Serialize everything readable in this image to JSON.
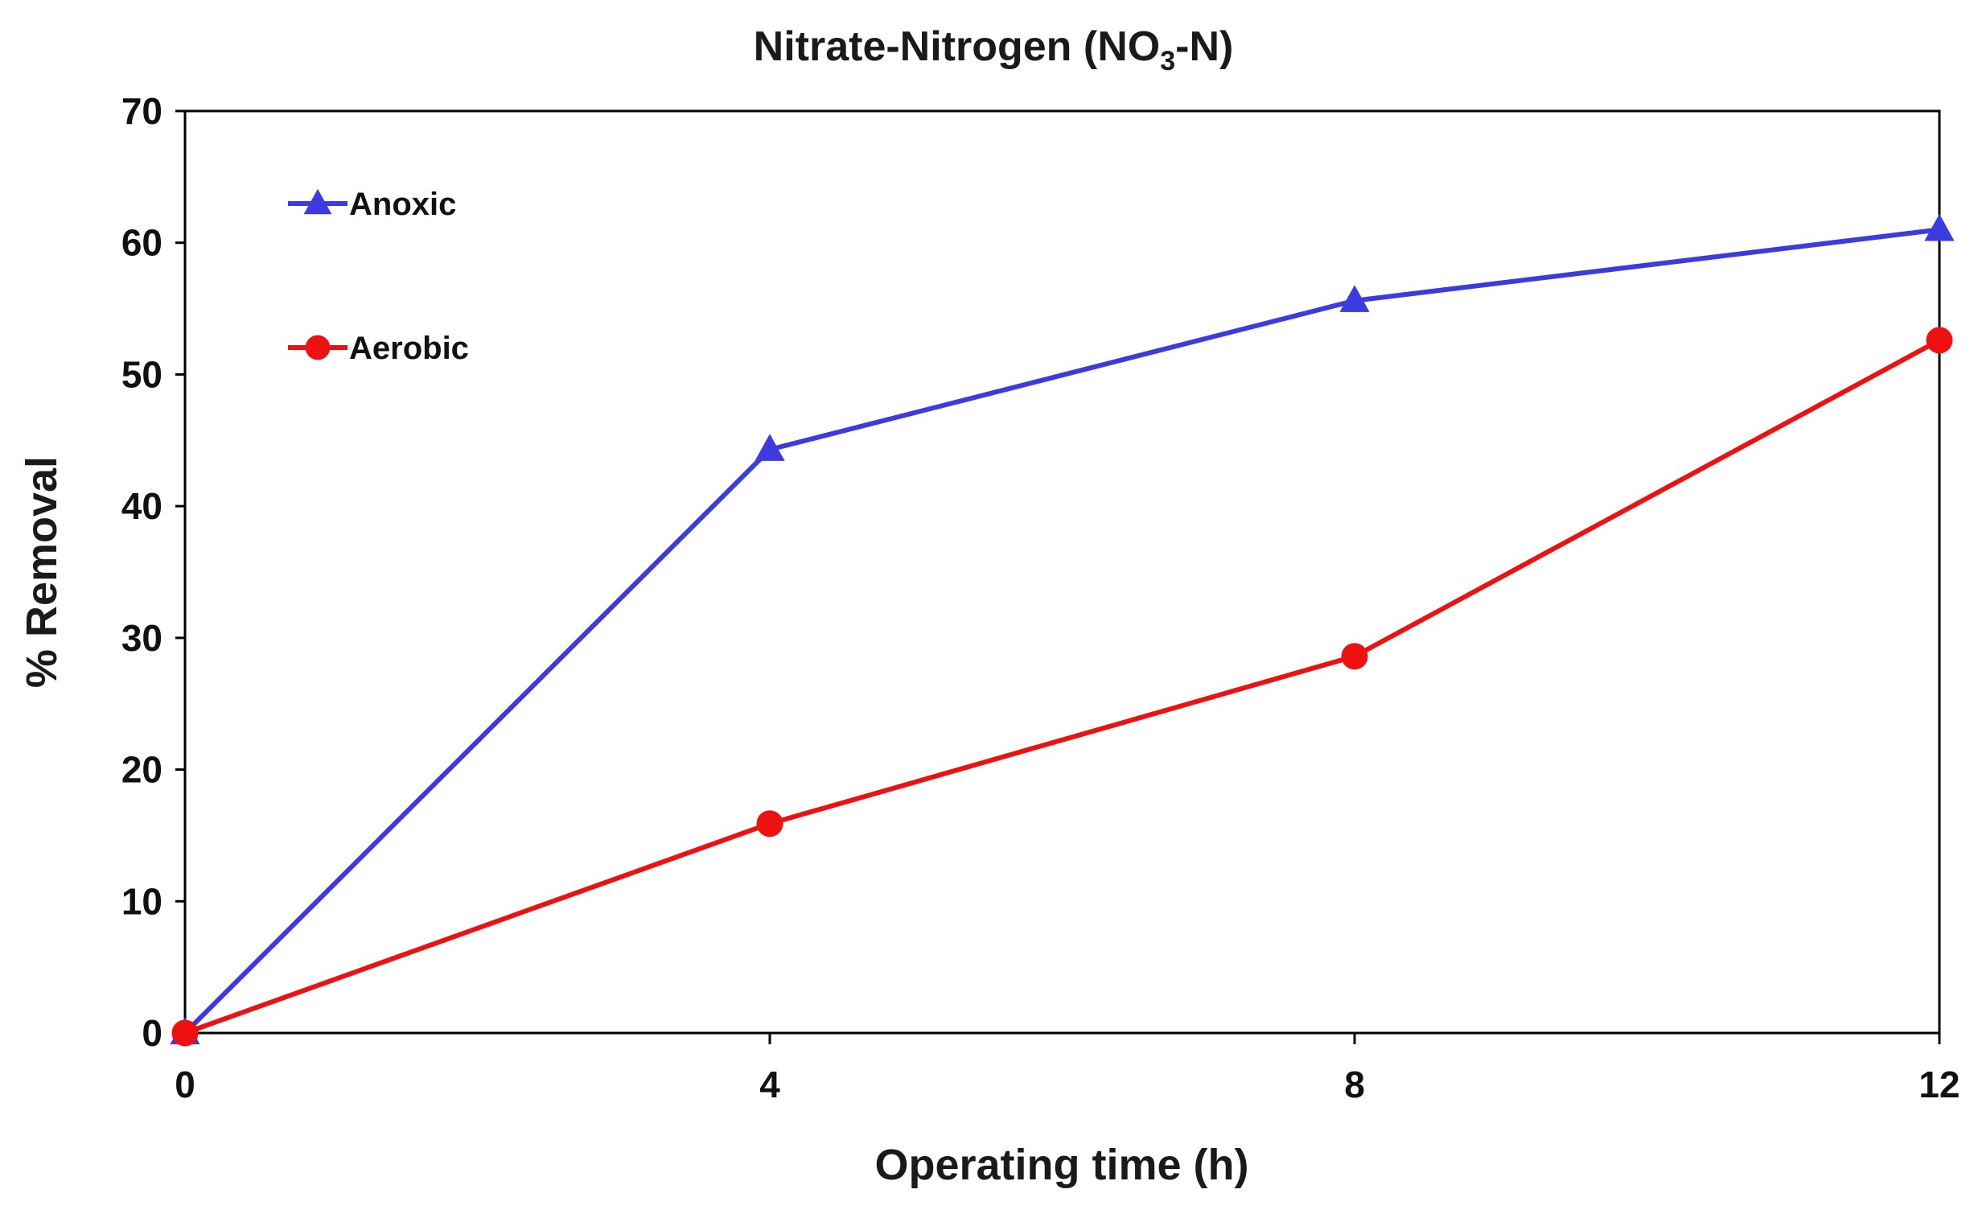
{
  "chart_data": {
    "type": "line",
    "title": {
      "prefix": "Nitrate-Nitrogen (NO",
      "subscript": "3",
      "suffix": "-N)"
    },
    "xlabel": "Operating time (h)",
    "ylabel": "% Removal",
    "x": [
      0,
      4,
      8,
      12
    ],
    "xticks": [
      "0",
      "4",
      "8",
      "12"
    ],
    "xlim": [
      0,
      12
    ],
    "ylim": [
      0,
      70
    ],
    "yticks": [
      "0",
      "10",
      "20",
      "30",
      "40",
      "50",
      "60",
      "70"
    ],
    "grid": false,
    "legend_position": "top-left",
    "series": [
      {
        "name": "Anoxic",
        "values": [
          0,
          44.3,
          55.6,
          61.0
        ],
        "color": "#3b3bdf",
        "marker": "triangle"
      },
      {
        "name": "Aerobic",
        "values": [
          0,
          15.9,
          28.6,
          52.6
        ],
        "color": "#ee1111",
        "marker": "circle"
      }
    ]
  }
}
